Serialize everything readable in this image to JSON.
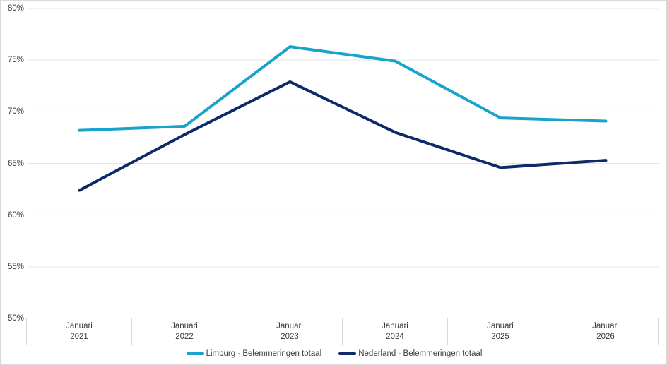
{
  "chart_data": {
    "type": "line",
    "title": "",
    "xlabel": "",
    "ylabel": "",
    "categories": [
      {
        "month": "Januari",
        "year": "2021"
      },
      {
        "month": "Januari",
        "year": "2022"
      },
      {
        "month": "Januari",
        "year": "2023"
      },
      {
        "month": "Januari",
        "year": "2024"
      },
      {
        "month": "Januari",
        "year": "2025"
      },
      {
        "month": "Januari",
        "year": "2026"
      }
    ],
    "series": [
      {
        "name": "Limburg - Belemmeringen totaal",
        "slug": "limburg",
        "color": "#17a3ca",
        "values": [
          68.2,
          68.6,
          76.3,
          74.9,
          69.4,
          69.1
        ]
      },
      {
        "name": "Nederland - Belemmeringen totaal",
        "slug": "nederland",
        "color": "#0d2a68",
        "values": [
          62.4,
          67.8,
          72.9,
          68.0,
          64.6,
          65.3
        ]
      }
    ],
    "y_ticks": [
      80,
      75,
      70,
      65,
      60,
      55,
      50
    ],
    "y_tick_labels": [
      "80%",
      "75%",
      "70%",
      "65%",
      "60%",
      "55%",
      "50%"
    ],
    "ylim": [
      50,
      80
    ],
    "grid": "horizontal",
    "legend_position": "bottom"
  },
  "style": {
    "grid_color": "#e7e7e7",
    "border_color": "#d9d9d9",
    "text_color": "#3b3b3b",
    "background": "#ffffff",
    "line_width": 4
  }
}
